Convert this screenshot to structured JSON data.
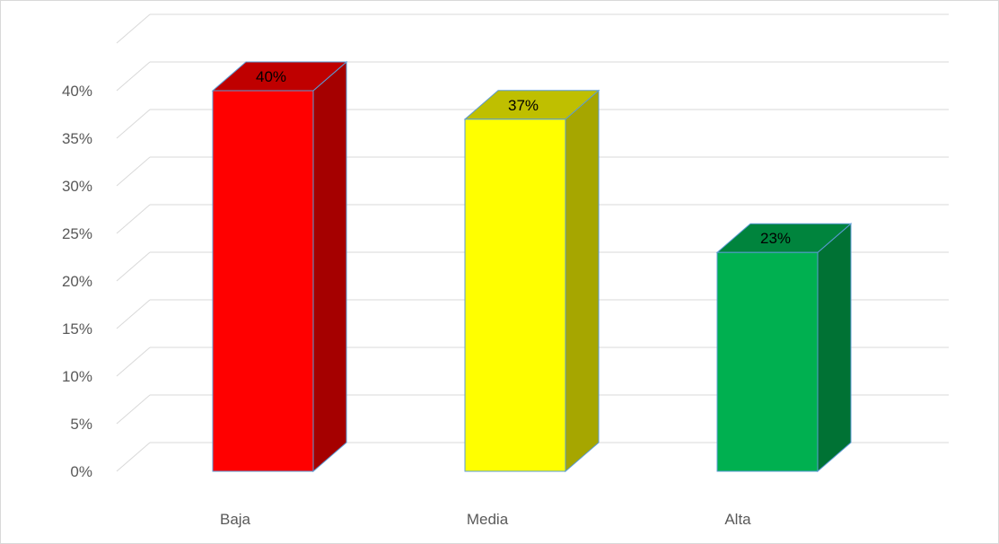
{
  "chart_data": {
    "type": "bar",
    "style": "3d-column",
    "categories": [
      "Baja",
      "Media",
      "Alta"
    ],
    "values": [
      40,
      37,
      23
    ],
    "data_labels": [
      "40%",
      "37%",
      "23%"
    ],
    "y_ticks": [
      "0%",
      "5%",
      "10%",
      "15%",
      "20%",
      "25%",
      "30%",
      "35%",
      "40%"
    ],
    "ylim": [
      0,
      45
    ],
    "grid": true,
    "legend": "none",
    "colors": {
      "front": [
        "#ff0000",
        "#ffff00",
        "#00b050"
      ],
      "side": [
        "#a50000",
        "#a6a600",
        "#007234"
      ],
      "top": [
        "#bf0000",
        "#bfbf00",
        "#00843d"
      ],
      "outline": "#5b9bd5",
      "grid": "#d9d9d9",
      "tick_text": "#595959"
    }
  }
}
